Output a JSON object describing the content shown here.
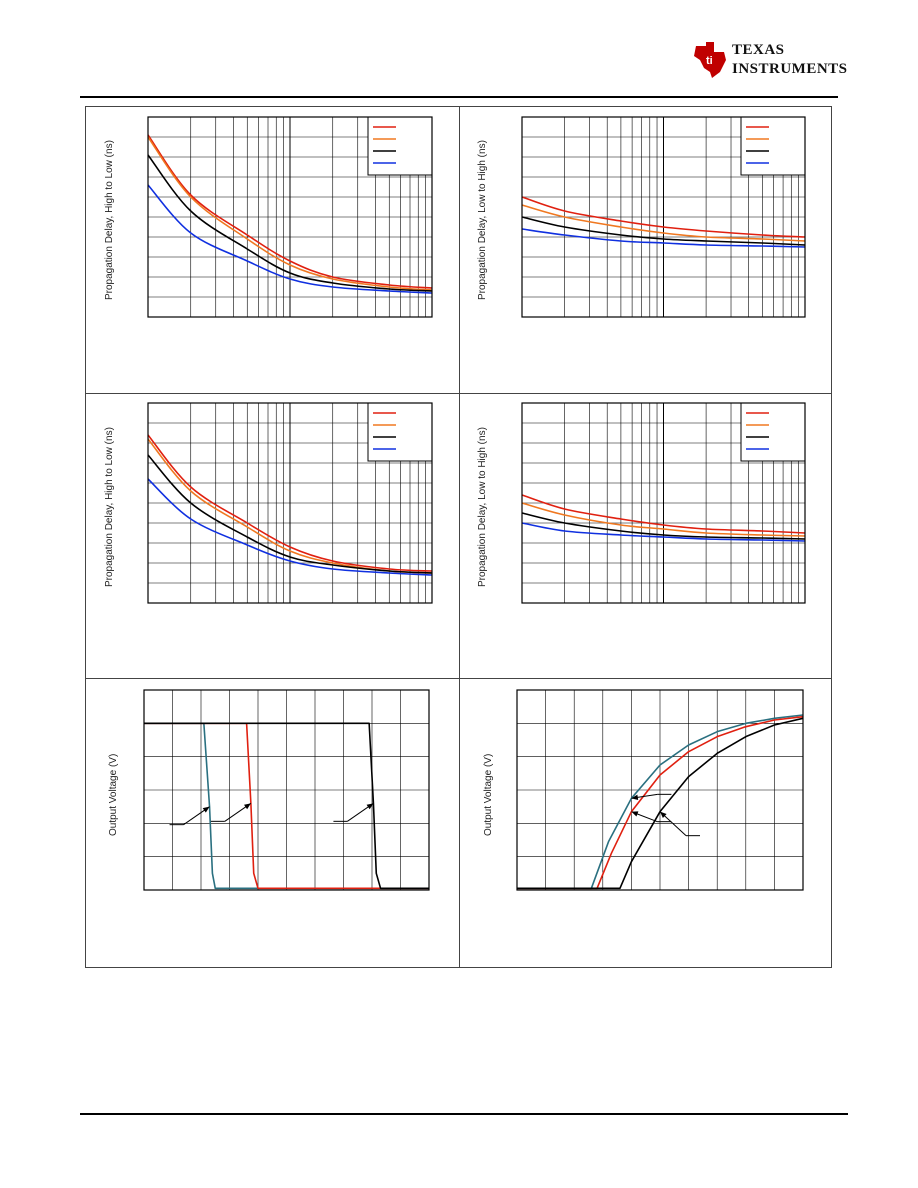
{
  "header": {
    "brand_line1": "TEXAS",
    "brand_line2": "INSTRUMENTS",
    "brand_color": "#c00000"
  },
  "chart_data": [
    {
      "type": "line",
      "position": "row1-left",
      "xscale": "log",
      "ylabel": "Propagation Delay, High to Low (ns)",
      "x": [
        0.01,
        0.02,
        0.05,
        0.1,
        0.2,
        0.5,
        1
      ],
      "ylim": [
        0,
        10
      ],
      "legend": "top-right",
      "series": [
        {
          "color": "#e02010",
          "values": [
            9.1,
            6.1,
            4.1,
            2.8,
            2.0,
            1.6,
            1.45
          ]
        },
        {
          "color": "#f07820",
          "values": [
            9.0,
            6.0,
            3.9,
            2.6,
            1.9,
            1.5,
            1.35
          ]
        },
        {
          "color": "#000000",
          "values": [
            8.1,
            5.3,
            3.4,
            2.2,
            1.7,
            1.4,
            1.3
          ]
        },
        {
          "color": "#1030e0",
          "values": [
            6.6,
            4.2,
            2.8,
            1.9,
            1.5,
            1.3,
            1.2
          ]
        }
      ]
    },
    {
      "type": "line",
      "position": "row1-right",
      "xscale": "log",
      "ylabel": "Propagation Delay, Low to High (ns)",
      "x": [
        0.01,
        0.02,
        0.05,
        0.1,
        0.2,
        0.5,
        1
      ],
      "ylim": [
        0,
        10
      ],
      "legend": "top-right",
      "series": [
        {
          "color": "#e02010",
          "values": [
            6.0,
            5.3,
            4.8,
            4.5,
            4.3,
            4.1,
            4.0
          ]
        },
        {
          "color": "#f07820",
          "values": [
            5.6,
            5.0,
            4.5,
            4.2,
            4.0,
            3.9,
            3.8
          ]
        },
        {
          "color": "#000000",
          "values": [
            5.0,
            4.5,
            4.1,
            3.9,
            3.8,
            3.7,
            3.6
          ]
        },
        {
          "color": "#1030e0",
          "values": [
            4.4,
            4.1,
            3.8,
            3.7,
            3.6,
            3.55,
            3.5
          ]
        }
      ]
    },
    {
      "type": "line",
      "position": "row2-left",
      "xscale": "log",
      "ylabel": "Propagation Delay, High to Low (ns)",
      "x": [
        0.01,
        0.02,
        0.05,
        0.1,
        0.2,
        0.5,
        1
      ],
      "ylim": [
        0,
        10
      ],
      "legend": "top-right",
      "series": [
        {
          "color": "#e02010",
          "values": [
            8.4,
            5.8,
            4.0,
            2.8,
            2.1,
            1.7,
            1.6
          ]
        },
        {
          "color": "#f07820",
          "values": [
            8.2,
            5.6,
            3.8,
            2.6,
            2.0,
            1.6,
            1.5
          ]
        },
        {
          "color": "#000000",
          "values": [
            7.4,
            5.0,
            3.3,
            2.3,
            1.9,
            1.6,
            1.5
          ]
        },
        {
          "color": "#1030e0",
          "values": [
            6.2,
            4.2,
            2.9,
            2.1,
            1.7,
            1.5,
            1.4
          ]
        }
      ]
    },
    {
      "type": "line",
      "position": "row2-right",
      "xscale": "log",
      "ylabel": "Propagation Delay, Low to High (ns)",
      "x": [
        0.01,
        0.02,
        0.05,
        0.1,
        0.2,
        0.5,
        1
      ],
      "ylim": [
        0,
        10
      ],
      "legend": "top-right",
      "series": [
        {
          "color": "#e02010",
          "values": [
            5.4,
            4.7,
            4.2,
            3.9,
            3.7,
            3.6,
            3.5
          ]
        },
        {
          "color": "#f07820",
          "values": [
            5.0,
            4.4,
            3.9,
            3.7,
            3.5,
            3.4,
            3.35
          ]
        },
        {
          "color": "#000000",
          "values": [
            4.5,
            4.0,
            3.6,
            3.4,
            3.3,
            3.25,
            3.2
          ]
        },
        {
          "color": "#1030e0",
          "values": [
            4.0,
            3.6,
            3.4,
            3.3,
            3.2,
            3.15,
            3.1
          ]
        }
      ]
    },
    {
      "type": "line",
      "position": "row3-left",
      "ylabel": "Output Voltage (V)",
      "xlim": [
        0,
        10
      ],
      "ylim": [
        0,
        6
      ],
      "series": [
        {
          "color": "#2a7080",
          "x": [
            0,
            2.1,
            2.3,
            2.4,
            2.5,
            10
          ],
          "values": [
            5.0,
            5.0,
            2.5,
            0.5,
            0.05,
            0.05
          ]
        },
        {
          "color": "#e02010",
          "x": [
            0,
            3.6,
            3.75,
            3.85,
            4.0,
            10
          ],
          "values": [
            5.0,
            5.0,
            2.6,
            0.5,
            0.05,
            0.05
          ]
        },
        {
          "color": "#000000",
          "x": [
            0,
            7.9,
            8.05,
            8.15,
            8.3,
            10
          ],
          "values": [
            5.0,
            5.0,
            2.6,
            0.5,
            0.05,
            0.05
          ]
        }
      ],
      "annotations": [
        {
          "target_series": 0
        },
        {
          "target_series": 1
        },
        {
          "target_series": 2
        }
      ]
    },
    {
      "type": "line",
      "position": "row3-right",
      "ylabel": "Output Voltage (V)",
      "xlim": [
        0,
        10
      ],
      "ylim": [
        0,
        6
      ],
      "series": [
        {
          "color": "#2a7080",
          "x": [
            0,
            2.6,
            3.2,
            4.0,
            5.0,
            6.0,
            7.0,
            8.0,
            9.0,
            10.0
          ],
          "values": [
            0.05,
            0.05,
            1.45,
            2.75,
            3.75,
            4.35,
            4.75,
            5.0,
            5.15,
            5.25
          ]
        },
        {
          "color": "#e02010",
          "x": [
            0,
            2.8,
            3.3,
            4.0,
            5.0,
            6.0,
            7.0,
            8.0,
            9.0,
            10.0
          ],
          "values": [
            0.05,
            0.05,
            1.1,
            2.35,
            3.45,
            4.15,
            4.6,
            4.9,
            5.1,
            5.2
          ]
        },
        {
          "color": "#000000",
          "x": [
            0,
            3.6,
            4.0,
            5.0,
            6.0,
            7.0,
            8.0,
            9.0,
            10.0
          ],
          "values": [
            0.05,
            0.05,
            0.85,
            2.35,
            3.4,
            4.1,
            4.6,
            4.95,
            5.15
          ]
        }
      ],
      "annotations": [
        {
          "target_series": 0
        },
        {
          "target_series": 1
        },
        {
          "target_series": 2
        }
      ]
    }
  ]
}
